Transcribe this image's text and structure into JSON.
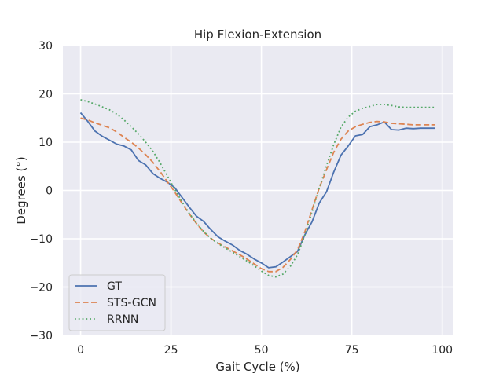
{
  "chart_data": {
    "type": "line",
    "title": "Hip Flexion-Extension",
    "xlabel": "Gait Cycle (%)",
    "ylabel": "Degrees (°)",
    "xlim": [
      -4.9,
      102.9
    ],
    "ylim": [
      -30,
      30
    ],
    "xticks": [
      0,
      25,
      50,
      75,
      100
    ],
    "yticks": [
      -30,
      -20,
      -10,
      0,
      10,
      20,
      30
    ],
    "xtick_labels": [
      "0",
      "25",
      "50",
      "75",
      "100"
    ],
    "ytick_labels": [
      "−30",
      "−20",
      "−10",
      "0",
      "10",
      "20",
      "30"
    ],
    "grid": true,
    "legend_position": "lower-left",
    "x": [
      0,
      2,
      4,
      6,
      8,
      10,
      12,
      14,
      16,
      18,
      20,
      22,
      24,
      26,
      28,
      30,
      32,
      34,
      36,
      38,
      40,
      42,
      44,
      46,
      48,
      50,
      52,
      54,
      56,
      58,
      60,
      62,
      64,
      66,
      68,
      70,
      72,
      74,
      76,
      78,
      80,
      82,
      84,
      86,
      88,
      90,
      92,
      94,
      96,
      98
    ],
    "series": [
      {
        "name": "GT",
        "color": "#4c72b0",
        "style": "solid",
        "values": [
          16.1,
          14.3,
          12.3,
          11.2,
          10.4,
          9.6,
          9.2,
          8.4,
          6.2,
          5.3,
          3.5,
          2.5,
          1.7,
          0.6,
          -1.4,
          -3.4,
          -5.3,
          -6.4,
          -8.1,
          -9.6,
          -10.5,
          -11.3,
          -12.4,
          -13.2,
          -14.2,
          -15.0,
          -16.0,
          -15.8,
          -14.8,
          -13.7,
          -12.6,
          -9.2,
          -6.5,
          -2.6,
          -0.3,
          3.8,
          7.3,
          9.2,
          11.3,
          11.6,
          13.2,
          13.6,
          14.2,
          12.6,
          12.5,
          12.9,
          12.8,
          12.9,
          12.9,
          12.9
        ]
      },
      {
        "name": "STS-GCN",
        "color": "#dd8452",
        "style": "dashed",
        "values": [
          15.0,
          14.6,
          14.0,
          13.5,
          13.0,
          12.1,
          11.0,
          10.0,
          8.8,
          7.4,
          5.8,
          3.9,
          1.8,
          -0.3,
          -2.6,
          -4.8,
          -6.8,
          -8.6,
          -9.9,
          -10.9,
          -11.7,
          -12.5,
          -13.3,
          -14.2,
          -15.2,
          -16.2,
          -16.8,
          -16.8,
          -15.9,
          -14.3,
          -12.3,
          -8.6,
          -4.0,
          0.5,
          4.3,
          7.9,
          10.6,
          12.3,
          13.2,
          13.7,
          14.1,
          14.3,
          14.2,
          13.9,
          13.8,
          13.7,
          13.6,
          13.6,
          13.6,
          13.6
        ]
      },
      {
        "name": "RRNN",
        "color": "#55a868",
        "style": "dotted",
        "values": [
          18.8,
          18.4,
          17.9,
          17.3,
          16.7,
          15.8,
          14.6,
          13.2,
          11.7,
          10.0,
          8.1,
          5.7,
          3.0,
          0.3,
          -2.3,
          -4.7,
          -6.7,
          -8.5,
          -9.9,
          -11.0,
          -11.9,
          -12.8,
          -13.7,
          -14.6,
          -15.6,
          -16.7,
          -17.6,
          -17.9,
          -17.3,
          -15.7,
          -13.3,
          -9.3,
          -4.5,
          0.5,
          5.1,
          9.5,
          13.1,
          15.2,
          16.4,
          17.0,
          17.4,
          17.8,
          17.8,
          17.6,
          17.3,
          17.2,
          17.2,
          17.2,
          17.2,
          17.2
        ]
      }
    ]
  }
}
